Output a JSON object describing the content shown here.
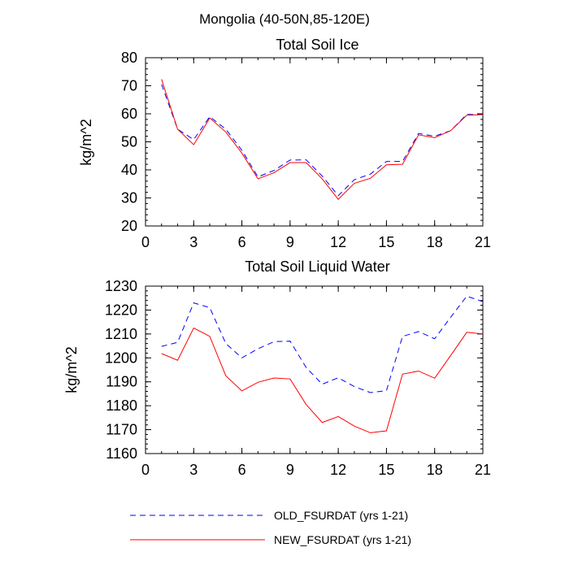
{
  "suptitle": "Mongolia (40-50N,85-120E)",
  "legend": {
    "entries": [
      {
        "label": "OLD_FSURDAT (yrs 1-21)",
        "color": "#0000ff",
        "dash": "dashed"
      },
      {
        "label": "NEW_FSURDAT (yrs 1-21)",
        "color": "#ff0000",
        "dash": "solid"
      }
    ]
  },
  "chart_data": [
    {
      "type": "line",
      "title": "Total Soil Ice",
      "xlabel": "",
      "ylabel": "kg/m^2",
      "xlim": [
        0,
        21
      ],
      "ylim": [
        20,
        80
      ],
      "xticks": [
        0,
        3,
        6,
        9,
        12,
        15,
        18,
        21
      ],
      "yticks": [
        20,
        30,
        40,
        50,
        60,
        70,
        80
      ],
      "x": [
        1,
        2,
        3,
        4,
        5,
        6,
        7,
        8,
        9,
        10,
        11,
        12,
        13,
        14,
        15,
        16,
        17,
        18,
        19,
        20,
        21
      ],
      "series": [
        {
          "name": "OLD_FSURDAT (yrs 1-21)",
          "color": "#0000ff",
          "dash": "dashed",
          "values": [
            70.5,
            54.5,
            50.8,
            59.0,
            54.5,
            47.0,
            37.5,
            39.8,
            43.5,
            43.6,
            37.8,
            30.8,
            36.5,
            38.5,
            43.0,
            43.0,
            53.0,
            52.0,
            54.0,
            59.8,
            59.7
          ]
        },
        {
          "name": "NEW_FSURDAT (yrs 1-21)",
          "color": "#ff0000",
          "dash": "solid",
          "values": [
            72.3,
            54.5,
            49.0,
            58.5,
            53.5,
            46.0,
            36.8,
            39.0,
            42.6,
            42.6,
            36.8,
            29.5,
            35.2,
            37.0,
            41.8,
            42.0,
            52.5,
            51.5,
            54.0,
            59.5,
            59.7
          ]
        }
      ]
    },
    {
      "type": "line",
      "title": "Total Soil Liquid Water",
      "xlabel": "",
      "ylabel": "kg/m^2",
      "xlim": [
        0,
        21
      ],
      "ylim": [
        1160,
        1230
      ],
      "xticks": [
        0,
        3,
        6,
        9,
        12,
        15,
        18,
        21
      ],
      "yticks": [
        1160,
        1170,
        1180,
        1190,
        1200,
        1210,
        1220,
        1230
      ],
      "x": [
        1,
        2,
        3,
        4,
        5,
        6,
        7,
        8,
        9,
        10,
        11,
        12,
        13,
        14,
        15,
        16,
        17,
        18,
        19,
        20,
        21
      ],
      "series": [
        {
          "name": "OLD_FSURDAT (yrs 1-21)",
          "color": "#0000ff",
          "dash": "dashed",
          "values": [
            1204.8,
            1206.5,
            1223.0,
            1221.0,
            1206.0,
            1200.0,
            1203.8,
            1206.8,
            1207.0,
            1196.0,
            1189.0,
            1191.7,
            1188.0,
            1185.5,
            1186.3,
            1209.0,
            1211.0,
            1208.0,
            1217.0,
            1225.8,
            1223.5
          ]
        },
        {
          "name": "NEW_FSURDAT (yrs 1-21)",
          "color": "#ff0000",
          "dash": "solid",
          "values": [
            1201.8,
            1199.0,
            1212.5,
            1209.0,
            1192.5,
            1186.2,
            1189.8,
            1191.6,
            1191.2,
            1180.5,
            1173.0,
            1175.5,
            1171.5,
            1168.7,
            1169.5,
            1193.2,
            1194.5,
            1191.5,
            1201.0,
            1210.7,
            1210.0
          ]
        }
      ]
    }
  ]
}
